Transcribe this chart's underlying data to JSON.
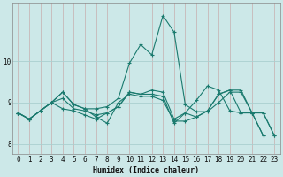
{
  "xlabel": "Humidex (Indice chaleur)",
  "bg_color": "#cce8e8",
  "grid_color": "#aacfcf",
  "line_color": "#1a7a6e",
  "xlim": [
    -0.5,
    23.5
  ],
  "ylim": [
    7.75,
    11.4
  ],
  "yticks": [
    8,
    9,
    10
  ],
  "xticks": [
    0,
    1,
    2,
    3,
    4,
    5,
    6,
    7,
    8,
    9,
    10,
    11,
    12,
    13,
    14,
    15,
    16,
    17,
    18,
    19,
    20,
    21,
    22,
    23
  ],
  "series": [
    [
      8.75,
      8.6,
      8.8,
      9.0,
      9.25,
      8.95,
      8.85,
      8.85,
      8.9,
      9.1,
      9.95,
      10.4,
      10.15,
      11.1,
      10.7,
      8.95,
      8.78,
      8.78,
      9.0,
      9.25,
      9.25,
      8.75,
      8.75,
      8.2
    ],
    [
      8.75,
      8.6,
      8.8,
      9.0,
      9.25,
      8.95,
      8.85,
      8.65,
      8.5,
      9.0,
      9.2,
      9.15,
      9.15,
      9.05,
      8.55,
      8.55,
      8.65,
      8.8,
      9.2,
      9.3,
      9.3,
      8.75,
      8.75,
      8.2
    ],
    [
      8.75,
      8.6,
      8.8,
      9.0,
      9.1,
      8.85,
      8.8,
      8.7,
      8.75,
      8.9,
      9.25,
      9.2,
      9.3,
      9.25,
      8.6,
      8.75,
      9.05,
      9.4,
      9.3,
      8.8,
      8.75,
      8.75,
      8.2,
      null
    ],
    [
      8.75,
      8.6,
      8.8,
      9.0,
      8.85,
      8.8,
      8.7,
      8.6,
      8.75,
      8.9,
      9.25,
      9.2,
      9.2,
      9.15,
      8.5,
      8.75,
      8.65,
      8.8,
      9.2,
      9.3,
      8.75,
      8.75,
      8.2,
      null
    ]
  ]
}
